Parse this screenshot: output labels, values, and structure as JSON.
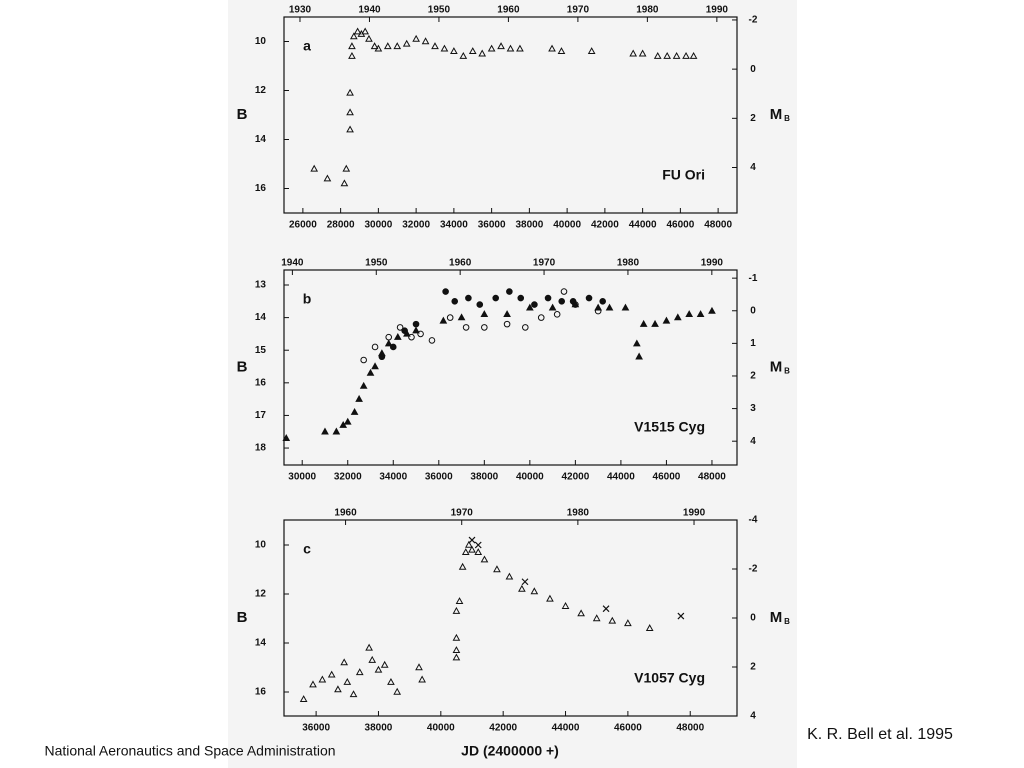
{
  "slide": {
    "citation": "K. R. Bell et al. 1995",
    "footer": "National Aeronautics and Space Administration"
  },
  "chart_data": [
    {
      "type": "scatter",
      "panel_label": "a",
      "annotation": "FU Ori",
      "ylabel": "B",
      "y2_label": "M",
      "y2_label_subscript": "B",
      "xlim": [
        25000,
        49000
      ],
      "xticks": [
        26000,
        28000,
        30000,
        32000,
        34000,
        36000,
        38000,
        40000,
        42000,
        44000,
        46000,
        48000
      ],
      "x2lim": [
        1927.7,
        1992.9
      ],
      "x2ticks": [
        1930,
        1940,
        1950,
        1960,
        1970,
        1980,
        1990
      ],
      "ylim": [
        17,
        9
      ],
      "yticks": [
        10,
        12,
        14,
        16
      ],
      "y2lim": [
        5.85,
        -2.12
      ],
      "y2ticks": [
        -2,
        0,
        2,
        4
      ],
      "series": [
        {
          "marker": "triangle",
          "filled": false,
          "color": "#111111",
          "x": [
            26600,
            27300,
            28200,
            28300,
            28500,
            28500,
            28500,
            28600,
            28600,
            28700,
            28900,
            29100,
            29300,
            29500,
            29800,
            30000,
            30500,
            31000,
            31500,
            32000,
            32500,
            33000,
            33500,
            34000,
            34500,
            35000,
            35500,
            36000,
            36500,
            37000,
            37500,
            39200,
            39700,
            41300,
            43500,
            44000,
            44800,
            45300,
            45800,
            46300,
            46700
          ],
          "values": [
            15.2,
            15.6,
            15.8,
            15.2,
            13.6,
            12.9,
            12.1,
            10.6,
            10.2,
            9.8,
            9.6,
            9.7,
            9.6,
            9.9,
            10.2,
            10.3,
            10.2,
            10.2,
            10.1,
            9.9,
            10.0,
            10.2,
            10.3,
            10.4,
            10.6,
            10.4,
            10.5,
            10.3,
            10.2,
            10.3,
            10.3,
            10.3,
            10.4,
            10.4,
            10.5,
            10.5,
            10.6,
            10.6,
            10.6,
            10.6,
            10.6
          ]
        }
      ]
    },
    {
      "type": "scatter",
      "panel_label": "b",
      "annotation": "V1515 Cyg",
      "ylabel": "B",
      "y2_label": "M",
      "y2_label_subscript": "B",
      "xlim": [
        29200,
        49100
      ],
      "xticks": [
        30000,
        32000,
        34000,
        36000,
        38000,
        40000,
        42000,
        44000,
        46000,
        48000
      ],
      "x2lim": [
        1939,
        1993
      ],
      "x2ticks": [
        1940,
        1950,
        1960,
        1970,
        1980,
        1990
      ],
      "ylim": [
        18.52,
        12.54
      ],
      "yticks": [
        13,
        14,
        15,
        16,
        17,
        18
      ],
      "y2lim": [
        4.73,
        -1.25
      ],
      "y2ticks": [
        -1,
        0,
        1,
        2,
        3,
        4
      ],
      "series": [
        {
          "marker": "triangle",
          "filled": true,
          "color": "#111111",
          "x": [
            29300,
            31000,
            31500,
            31800,
            32000,
            32300,
            32500,
            32700,
            33000,
            33200,
            33500,
            33800,
            34200,
            34600,
            35000,
            36200,
            37000,
            38000,
            39000,
            40000,
            41000,
            42000,
            43000,
            43500,
            44200,
            44700,
            44800,
            45000,
            45500,
            46000,
            46500,
            47000,
            47500,
            48000
          ],
          "values": [
            17.7,
            17.5,
            17.5,
            17.3,
            17.2,
            16.9,
            16.5,
            16.1,
            15.7,
            15.5,
            15.1,
            14.8,
            14.6,
            14.5,
            14.4,
            14.1,
            14.0,
            13.9,
            13.9,
            13.7,
            13.7,
            13.6,
            13.7,
            13.7,
            13.7,
            14.8,
            15.2,
            14.2,
            14.2,
            14.1,
            14.0,
            13.9,
            13.9,
            13.8
          ]
        },
        {
          "marker": "circle",
          "filled": false,
          "color": "#111111",
          "x": [
            32700,
            33200,
            33800,
            34300,
            34800,
            35200,
            35700,
            36500,
            37200,
            38000,
            39000,
            39800,
            40500,
            41200,
            41500,
            42000,
            43000
          ],
          "values": [
            15.3,
            14.9,
            14.6,
            14.3,
            14.6,
            14.5,
            14.7,
            14.0,
            14.3,
            14.3,
            14.2,
            14.3,
            14.0,
            13.9,
            13.2,
            13.6,
            13.8
          ]
        },
        {
          "marker": "circle",
          "filled": true,
          "color": "#111111",
          "x": [
            33500,
            34000,
            34500,
            35000,
            36300,
            36700,
            37300,
            37800,
            38500,
            39100,
            39600,
            40200,
            40800,
            41400,
            41900,
            42600,
            43200
          ],
          "values": [
            15.2,
            14.9,
            14.4,
            14.2,
            13.2,
            13.5,
            13.4,
            13.6,
            13.4,
            13.2,
            13.4,
            13.6,
            13.4,
            13.5,
            13.5,
            13.4,
            13.5
          ]
        }
      ]
    },
    {
      "type": "scatter",
      "panel_label": "c",
      "annotation": "V1057 Cyg",
      "ylabel": "B",
      "y2_label": "M",
      "y2_label_subscript": "B",
      "xlabel": "JD (2400000 +)",
      "xlim": [
        34970,
        49500
      ],
      "xticks": [
        36000,
        38000,
        40000,
        42000,
        44000,
        46000,
        48000
      ],
      "x2lim": [
        1954.7,
        1993.7
      ],
      "x2ticks": [
        1960,
        1970,
        1980,
        1990
      ],
      "ylim": [
        16.98,
        8.98
      ],
      "yticks": [
        10,
        12,
        14,
        16
      ],
      "y2lim": [
        4,
        -4
      ],
      "y2ticks": [
        -4,
        -2,
        0,
        2,
        4
      ],
      "series": [
        {
          "marker": "triangle",
          "filled": false,
          "color": "#111111",
          "x": [
            35600,
            35900,
            36200,
            36500,
            36700,
            36900,
            37000,
            37200,
            37400,
            37700,
            37800,
            38000,
            38200,
            38400,
            38600,
            39300,
            39400,
            40500,
            40500,
            40500,
            40500,
            40600,
            40700,
            40800,
            40900,
            41000,
            41200,
            41400,
            41800,
            42200,
            42600,
            43000,
            43500,
            44000,
            44500,
            45000,
            45500,
            46000,
            46700
          ],
          "values": [
            16.3,
            15.7,
            15.5,
            15.3,
            15.9,
            14.8,
            15.6,
            16.1,
            15.2,
            14.2,
            14.7,
            15.1,
            14.9,
            15.6,
            16.0,
            15.0,
            15.5,
            14.6,
            14.3,
            13.8,
            12.7,
            12.3,
            10.9,
            10.3,
            10.0,
            10.2,
            10.3,
            10.6,
            11.0,
            11.3,
            11.8,
            11.9,
            12.2,
            12.5,
            12.8,
            13.0,
            13.1,
            13.2,
            13.4
          ]
        },
        {
          "marker": "cross",
          "filled": false,
          "color": "#111111",
          "x": [
            41000,
            41200,
            42700,
            45300,
            47700
          ],
          "values": [
            9.8,
            10.0,
            11.5,
            12.6,
            12.9
          ]
        }
      ]
    }
  ]
}
